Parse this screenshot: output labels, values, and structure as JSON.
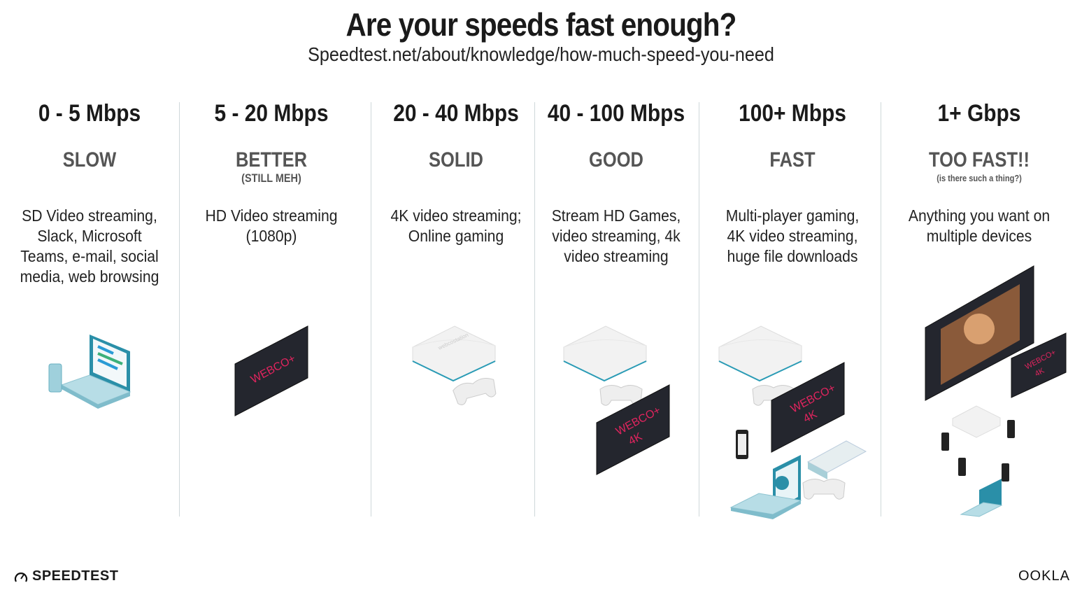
{
  "header": {
    "title": "Are your speeds fast enough?",
    "subtitle": "Speedtest.net/about/knowledge/how-much-speed-you-need"
  },
  "tiers": [
    {
      "speed": "0 - 5 Mbps",
      "label": "SLOW",
      "note": "",
      "description": "SD Video streaming, Slack, Microsoft Teams, e-mail, social media, web browsing"
    },
    {
      "speed": "5 - 20 Mbps",
      "label": "BETTER",
      "note": "(STILL MEH)",
      "description": "HD Video streaming (1080p)"
    },
    {
      "speed": "20 - 40 Mbps",
      "label": "SOLID",
      "note": "",
      "description": "4K video streaming; Online gaming"
    },
    {
      "speed": "40 - 100 Mbps",
      "label": "GOOD",
      "note": "",
      "description": "Stream HD Games, video streaming, 4k video streaming"
    },
    {
      "speed": "100+ Mbps",
      "label": "FAST",
      "note": "",
      "description": "Multi-player gaming, 4K video streaming, huge file downloads"
    },
    {
      "speed": "1+ Gbps",
      "label": "TOO FAST!!",
      "note": "(is there such a thing?)",
      "description": "Anything you want on multiple devices"
    }
  ],
  "tv": {
    "brand": "WEBCO+",
    "resolution": "4K"
  },
  "console": {
    "brand": "webcostation"
  },
  "footer": {
    "left_logo": "SPEEDTEST",
    "right_logo": "OOKLA"
  },
  "colors": {
    "tv_text": "#e0245e",
    "accent": "#2a9bb5",
    "divider": "#cfd8da"
  }
}
